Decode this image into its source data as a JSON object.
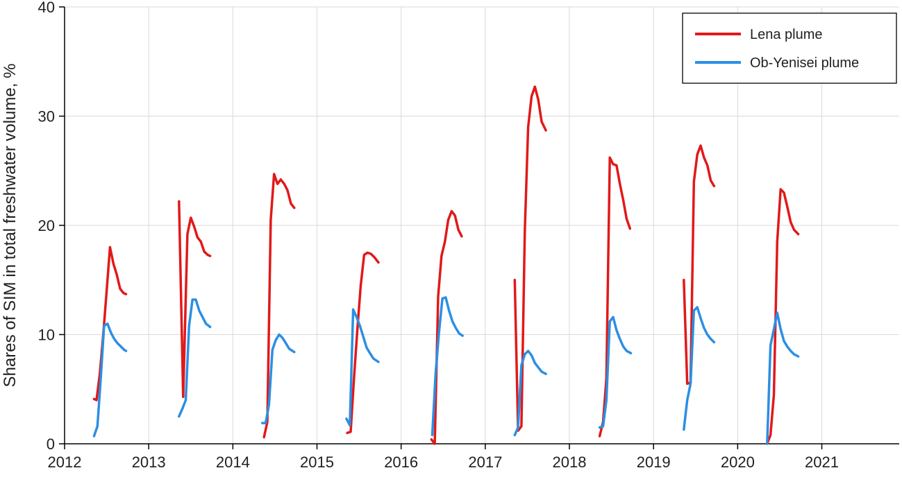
{
  "chart_data": {
    "type": "line",
    "title": "",
    "xlabel": "",
    "ylabel": "Shares of SIM in total freshwater volume, %",
    "xlim": [
      2012,
      2021.92
    ],
    "ylim": [
      0,
      40
    ],
    "x_ticks": [
      2012,
      2013,
      2014,
      2015,
      2016,
      2017,
      2018,
      2019,
      2020,
      2021
    ],
    "x_tick_labels": [
      "2012",
      "2013",
      "2014",
      "2015",
      "2016",
      "2017",
      "2018",
      "2019",
      "2020",
      "2021"
    ],
    "y_ticks": [
      0,
      10,
      20,
      30,
      40
    ],
    "y_tick_labels": [
      "0",
      "10",
      "20",
      "30",
      "40"
    ],
    "grid": true,
    "legend_position": "top-right",
    "series": [
      {
        "name": "Lena plume",
        "color": "#e11919",
        "segments": [
          {
            "x": [
              2012.35,
              2012.38,
              2012.42,
              2012.46,
              2012.5,
              2012.54,
              2012.58,
              2012.62,
              2012.66,
              2012.7,
              2012.73
            ],
            "y": [
              4.1,
              4.0,
              6.5,
              10.0,
              14.0,
              18.0,
              16.5,
              15.5,
              14.2,
              13.8,
              13.7
            ]
          },
          {
            "x": [
              2013.36,
              2013.41,
              2013.46,
              2013.5,
              2013.54,
              2013.58,
              2013.62,
              2013.66,
              2013.7,
              2013.73
            ],
            "y": [
              22.2,
              4.3,
              19.2,
              20.7,
              19.9,
              18.9,
              18.5,
              17.6,
              17.3,
              17.2
            ]
          },
          {
            "x": [
              2014.37,
              2014.41,
              2014.45,
              2014.49,
              2014.53,
              2014.57,
              2014.61,
              2014.65,
              2014.69,
              2014.73
            ],
            "y": [
              0.6,
              2.0,
              20.5,
              24.7,
              23.8,
              24.2,
              23.8,
              23.2,
              22.0,
              21.6
            ]
          },
          {
            "x": [
              2015.36,
              2015.4,
              2015.44,
              2015.48,
              2015.52,
              2015.56,
              2015.6,
              2015.64,
              2015.68,
              2015.73
            ],
            "y": [
              1.0,
              1.1,
              6.0,
              10.5,
              14.5,
              17.3,
              17.5,
              17.4,
              17.1,
              16.6
            ]
          },
          {
            "x": [
              2016.36,
              2016.4,
              2016.44,
              2016.48,
              2016.52,
              2016.56,
              2016.6,
              2016.64,
              2016.68,
              2016.72
            ],
            "y": [
              0.4,
              0.0,
              13.5,
              17.2,
              18.5,
              20.5,
              21.3,
              20.9,
              19.6,
              19.0
            ]
          },
          {
            "x": [
              2017.35,
              2017.39,
              2017.43,
              2017.47,
              2017.51,
              2017.55,
              2017.59,
              2017.63,
              2017.67,
              2017.72
            ],
            "y": [
              15.0,
              1.2,
              1.6,
              19.5,
              29.0,
              31.8,
              32.7,
              31.5,
              29.5,
              28.7
            ]
          },
          {
            "x": [
              2018.36,
              2018.4,
              2018.44,
              2018.48,
              2018.52,
              2018.56,
              2018.6,
              2018.64,
              2018.68,
              2018.72
            ],
            "y": [
              0.7,
              2.0,
              6.0,
              26.2,
              25.6,
              25.5,
              23.8,
              22.3,
              20.6,
              19.7
            ]
          },
          {
            "x": [
              2019.36,
              2019.4,
              2019.44,
              2019.48,
              2019.52,
              2019.56,
              2019.6,
              2019.64,
              2019.68,
              2019.72
            ],
            "y": [
              15.0,
              5.5,
              5.6,
              24.0,
              26.5,
              27.3,
              26.2,
              25.5,
              24.1,
              23.6
            ]
          },
          {
            "x": [
              2020.35,
              2020.39,
              2020.43,
              2020.47,
              2020.51,
              2020.55,
              2020.59,
              2020.63,
              2020.67,
              2020.72
            ],
            "y": [
              0.0,
              0.8,
              4.5,
              18.5,
              23.3,
              23.0,
              21.7,
              20.3,
              19.6,
              19.2
            ]
          }
        ]
      },
      {
        "name": "Ob-Yenisei plume",
        "color": "#2b8fe3",
        "segments": [
          {
            "x": [
              2012.35,
              2012.39,
              2012.43,
              2012.47,
              2012.51,
              2012.55,
              2012.59,
              2012.63,
              2012.67,
              2012.71,
              2012.73
            ],
            "y": [
              0.7,
              1.6,
              6.0,
              10.8,
              11.0,
              10.2,
              9.6,
              9.2,
              8.9,
              8.6,
              8.5
            ]
          },
          {
            "x": [
              2013.36,
              2013.4,
              2013.44,
              2013.48,
              2013.52,
              2013.56,
              2013.6,
              2013.64,
              2013.68,
              2013.73
            ],
            "y": [
              2.5,
              3.2,
              4.0,
              10.8,
              13.2,
              13.2,
              12.2,
              11.6,
              11.0,
              10.7
            ]
          },
          {
            "x": [
              2014.35,
              2014.39,
              2014.43,
              2014.47,
              2014.51,
              2014.55,
              2014.59,
              2014.63,
              2014.67,
              2014.73
            ],
            "y": [
              1.9,
              1.9,
              3.6,
              8.6,
              9.5,
              10.0,
              9.7,
              9.2,
              8.7,
              8.4
            ]
          },
          {
            "x": [
              2015.35,
              2015.39,
              2015.43,
              2015.47,
              2015.51,
              2015.55,
              2015.59,
              2015.63,
              2015.67,
              2015.73
            ],
            "y": [
              2.3,
              1.7,
              12.3,
              11.6,
              10.8,
              9.8,
              8.8,
              8.3,
              7.8,
              7.5
            ]
          },
          {
            "x": [
              2016.37,
              2016.41,
              2016.45,
              2016.49,
              2016.53,
              2016.57,
              2016.61,
              2016.65,
              2016.69,
              2016.73
            ],
            "y": [
              0.8,
              6.5,
              10.2,
              13.3,
              13.4,
              12.2,
              11.2,
              10.6,
              10.1,
              9.9
            ]
          },
          {
            "x": [
              2017.35,
              2017.39,
              2017.43,
              2017.47,
              2017.51,
              2017.55,
              2017.59,
              2017.63,
              2017.67,
              2017.72
            ],
            "y": [
              0.8,
              1.5,
              7.2,
              8.2,
              8.5,
              8.1,
              7.4,
              7.0,
              6.6,
              6.4
            ]
          },
          {
            "x": [
              2018.36,
              2018.4,
              2018.44,
              2018.48,
              2018.52,
              2018.56,
              2018.6,
              2018.64,
              2018.68,
              2018.73
            ],
            "y": [
              1.5,
              1.6,
              4.0,
              11.2,
              11.6,
              10.4,
              9.6,
              8.9,
              8.5,
              8.3
            ]
          },
          {
            "x": [
              2019.36,
              2019.4,
              2019.44,
              2019.48,
              2019.52,
              2019.56,
              2019.6,
              2019.64,
              2019.68,
              2019.72
            ],
            "y": [
              1.3,
              4.0,
              5.5,
              12.2,
              12.5,
              11.5,
              10.6,
              10.0,
              9.6,
              9.3
            ]
          },
          {
            "x": [
              2020.35,
              2020.39,
              2020.43,
              2020.47,
              2020.51,
              2020.55,
              2020.59,
              2020.63,
              2020.67,
              2020.72
            ],
            "y": [
              0.0,
              9.0,
              10.5,
              12.0,
              10.5,
              9.4,
              8.9,
              8.5,
              8.2,
              8.0
            ]
          }
        ]
      }
    ]
  }
}
